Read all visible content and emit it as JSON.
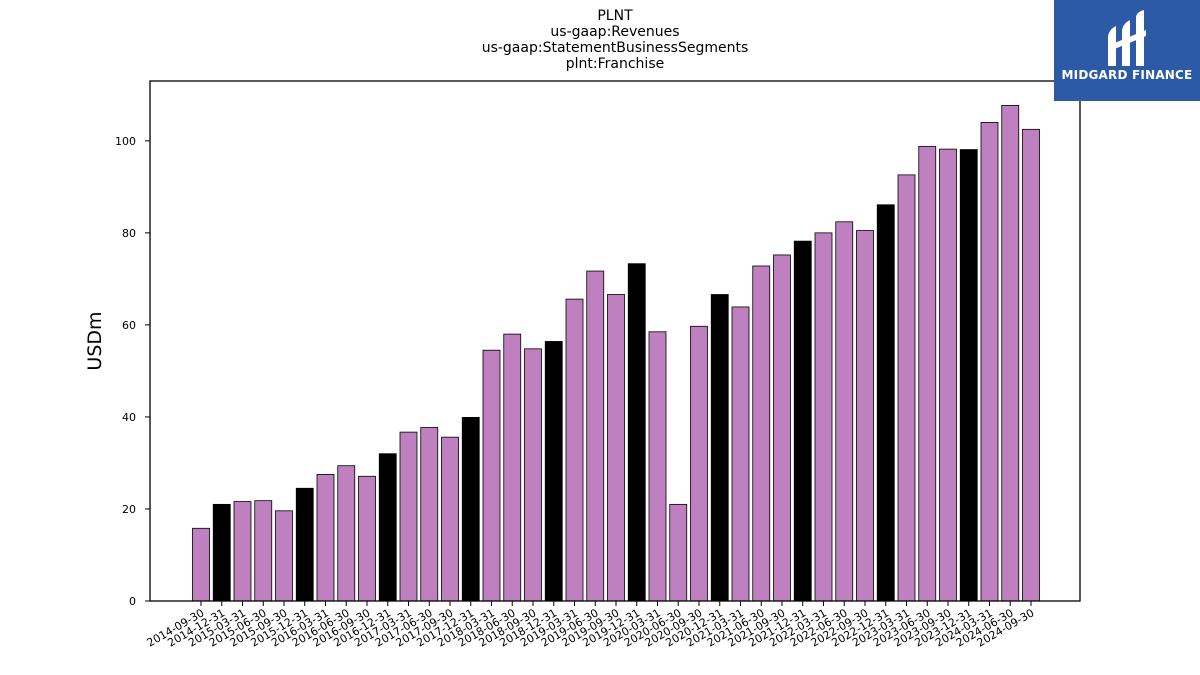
{
  "logo": {
    "text": "MIDGARD FINANCE"
  },
  "chart_data": {
    "type": "bar",
    "title_lines": [
      "PLNT",
      "us-gaap:Revenues",
      "us-gaap:StatementBusinessSegments",
      "plnt:Franchise"
    ],
    "xlabel": "",
    "ylabel": "USDm",
    "ylim": [
      0,
      113
    ],
    "yticks": [
      0,
      20,
      40,
      60,
      80,
      100
    ],
    "grid": false,
    "colors": {
      "quarter": "#bf80bf",
      "year_end": "#000000",
      "edge": "#000000"
    },
    "categories": [
      "2014-09-30",
      "2014-12-31",
      "2015-03-31",
      "2015-06-30",
      "2015-09-30",
      "2015-12-31",
      "2016-03-31",
      "2016-06-30",
      "2016-09-30",
      "2016-12-31",
      "2017-03-31",
      "2017-06-30",
      "2017-09-30",
      "2017-12-31",
      "2018-03-31",
      "2018-06-30",
      "2018-09-30",
      "2018-12-31",
      "2019-03-31",
      "2019-06-30",
      "2019-09-30",
      "2019-12-31",
      "2020-03-31",
      "2020-06-30",
      "2020-09-30",
      "2020-12-31",
      "2021-03-31",
      "2021-06-30",
      "2021-09-30",
      "2021-12-31",
      "2022-03-31",
      "2022-06-30",
      "2022-09-30",
      "2022-12-31",
      "2023-03-31",
      "2023-06-30",
      "2023-09-30",
      "2023-12-31",
      "2024-03-31",
      "2024-06-30",
      "2024-09-30"
    ],
    "values": [
      15.8,
      21.0,
      21.6,
      21.8,
      19.6,
      24.5,
      27.5,
      29.4,
      27.1,
      32.0,
      36.7,
      37.7,
      35.6,
      39.9,
      54.5,
      58.0,
      54.8,
      56.4,
      65.6,
      71.7,
      66.6,
      73.3,
      58.5,
      21.0,
      59.7,
      66.6,
      63.9,
      72.8,
      75.2,
      78.2,
      80.0,
      82.4,
      80.5,
      86.1,
      92.6,
      98.8,
      98.2,
      98.1,
      104.0,
      107.7,
      102.5
    ]
  }
}
